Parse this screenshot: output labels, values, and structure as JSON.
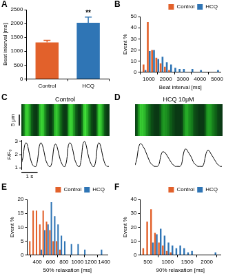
{
  "chart_data": [
    {
      "panel": "A",
      "type": "bar",
      "categories": [
        "Control",
        "HCQ"
      ],
      "values": [
        1320,
        2030
      ],
      "errors": [
        70,
        200
      ],
      "colors": [
        "#e2612b",
        "#2f75b5"
      ],
      "ylabel": "Beat interval [ms]",
      "ylim": [
        0,
        2500
      ],
      "yticks": [
        0,
        500,
        1000,
        1500,
        2000,
        2500
      ],
      "annotations": [
        {
          "category": "HCQ",
          "text": "**"
        }
      ],
      "grid": false
    },
    {
      "panel": "B",
      "type": "histogram",
      "x": [
        750,
        1000,
        1250,
        1500,
        1750,
        2000,
        2250,
        2500,
        2750,
        3000,
        3500,
        4000,
        5000
      ],
      "series": [
        {
          "name": "Control",
          "color": "#e2612b",
          "values": [
            7,
            45,
            20,
            13,
            8,
            5,
            2,
            0,
            0,
            0,
            0,
            0,
            0
          ]
        },
        {
          "name": "HCQ",
          "color": "#2f75b5",
          "values": [
            2,
            19,
            20,
            12,
            14,
            9,
            7,
            4,
            3,
            3,
            3,
            2,
            2
          ]
        }
      ],
      "xlabel": "Beat interval [ms]",
      "ylabel": "Event %",
      "xlim": [
        500,
        5200
      ],
      "xticks": [
        1000,
        2000,
        3000,
        4000,
        5000
      ],
      "ylim": [
        0,
        50
      ],
      "yticks": [
        0,
        10,
        20,
        30,
        40,
        50
      ],
      "legend": "upper right",
      "grid": false
    },
    {
      "panel": "C",
      "type": "line",
      "title": "Control",
      "image_scale_bar": "5 μm",
      "x": [
        0,
        0.1,
        0.2,
        0.3,
        0.4,
        0.5,
        0.6,
        0.7,
        0.8,
        0.9,
        1,
        1.1,
        1.2,
        1.3,
        1.4,
        1.5,
        1.6,
        1.7,
        1.8,
        1.9,
        2,
        2.1,
        2.2,
        2.3,
        2.4,
        2.5,
        2.6,
        2.7,
        2.8,
        2.9,
        3,
        3.1,
        3.2,
        3.3,
        3.4,
        3.5,
        3.6,
        3.7,
        3.8,
        3.9,
        4,
        4.1,
        4.2,
        4.3,
        4.4,
        4.5,
        4.6,
        4.7,
        4.8,
        4.9,
        5,
        5.1,
        5.2,
        5.3,
        5.4
      ],
      "values": [
        1.3,
        1.8,
        2.7,
        2.9,
        2.6,
        2.0,
        1.5,
        1.2,
        1.1,
        1.1,
        1.6,
        2.6,
        2.9,
        2.7,
        2.2,
        1.6,
        1.3,
        1.1,
        1.1,
        1.5,
        2.5,
        2.8,
        2.6,
        2.1,
        1.6,
        1.3,
        1.1,
        1.1,
        1.6,
        2.7,
        2.9,
        2.7,
        2.2,
        1.6,
        1.3,
        1.1,
        1.1,
        1.7,
        2.8,
        3.0,
        2.7,
        2.1,
        1.6,
        1.3,
        1.1,
        1.1,
        1.6,
        2.7,
        2.9,
        2.6,
        2.0,
        1.5,
        1.2,
        1.1,
        1.1
      ],
      "color": "#000000",
      "ylabel": "F/F₀",
      "xlim": [
        0,
        5.4
      ],
      "ylim": [
        0.9,
        3.1
      ],
      "yticks": [
        1,
        2,
        3
      ],
      "scale_bar": {
        "value": 1,
        "label": "1 s"
      },
      "tick_labels": "y"
    },
    {
      "panel": "D",
      "type": "line",
      "title": "HCQ 10μM",
      "x": [
        0,
        0.1,
        0.2,
        0.3,
        0.4,
        0.5,
        0.6,
        0.7,
        0.8,
        0.9,
        1,
        1.1,
        1.2,
        1.3,
        1.4,
        1.5,
        1.6,
        1.7,
        1.8,
        1.9,
        2,
        2.1,
        2.2,
        2.3,
        2.4,
        2.5,
        2.6,
        2.7,
        2.8,
        2.9,
        3,
        3.1,
        3.2,
        3.3,
        3.4,
        3.5,
        3.6,
        3.7,
        3.8,
        3.9,
        4,
        4.1,
        4.2,
        4.3,
        4.4,
        4.5,
        4.6,
        4.7,
        4.8,
        4.9,
        5,
        5.1,
        5.2,
        5.3,
        5.4
      ],
      "values": [
        1.2,
        1.6,
        2.4,
        2.8,
        2.8,
        2.6,
        2.4,
        2.1,
        1.8,
        1.5,
        1.3,
        1.2,
        1.1,
        1.1,
        1.1,
        1.3,
        1.9,
        2.2,
        2.2,
        2.1,
        1.9,
        1.7,
        1.5,
        1.3,
        1.2,
        1.1,
        1.1,
        1.1,
        1.1,
        1.3,
        2.0,
        2.4,
        2.4,
        2.2,
        2.0,
        1.8,
        1.5,
        1.3,
        1.2,
        1.1,
        1.1,
        1.1,
        1.1,
        1.4,
        2.0,
        2.3,
        2.3,
        2.1,
        1.9,
        1.7,
        1.5,
        1.3,
        1.2,
        1.1,
        1.1
      ],
      "color": "#000000",
      "xlim": [
        0,
        5.4
      ],
      "ylim": [
        0.9,
        3.1
      ],
      "tick_labels": false
    },
    {
      "panel": "E",
      "type": "histogram",
      "x": [
        300,
        350,
        400,
        450,
        500,
        550,
        600,
        650,
        700,
        750,
        800,
        850,
        900,
        950,
        1000,
        1050,
        1100,
        1350
      ],
      "series": [
        {
          "name": "Control",
          "color": "#e2612b",
          "values": [
            5,
            16,
            16,
            11,
            16,
            12,
            9,
            5,
            5,
            2,
            0,
            0,
            0,
            0,
            0,
            0,
            0,
            0
          ]
        },
        {
          "name": "HCQ",
          "color": "#2f75b5",
          "values": [
            0,
            0,
            0,
            2,
            9,
            11,
            19,
            14,
            11,
            7,
            5,
            0,
            4,
            0,
            4,
            0,
            2,
            2
          ]
        }
      ],
      "xlabel": "50% relaxation [ms]",
      "ylabel": "Event %",
      "xlim": [
        250,
        1450
      ],
      "xticks": [
        400,
        600,
        800,
        1000,
        1200,
        1400
      ],
      "ylim": [
        0,
        20
      ],
      "yticks": [
        0,
        5,
        10,
        15,
        20
      ],
      "legend": "upper right",
      "grid": false
    },
    {
      "panel": "F",
      "type": "histogram",
      "x": [
        400,
        500,
        600,
        700,
        800,
        900,
        1000,
        1100,
        1200,
        1300,
        1400,
        1500,
        1600,
        2200
      ],
      "series": [
        {
          "name": "Control",
          "color": "#e2612b",
          "values": [
            5,
            24,
            33,
            16,
            9,
            7,
            3,
            2,
            0,
            0,
            0,
            0,
            0,
            0
          ]
        },
        {
          "name": "HCQ",
          "color": "#2f75b5",
          "values": [
            0,
            0,
            9,
            15,
            19,
            14,
            9,
            7,
            5,
            7,
            5,
            2,
            3,
            2
          ]
        }
      ],
      "xlabel": "90% relaxation [ms]",
      "ylabel": "Event %",
      "xlim": [
        300,
        2350
      ],
      "xticks": [
        500,
        1000,
        1500,
        2000
      ],
      "ylim": [
        0,
        40
      ],
      "yticks": [
        0,
        10,
        20,
        30,
        40
      ],
      "legend": "upper right",
      "grid": false
    }
  ]
}
